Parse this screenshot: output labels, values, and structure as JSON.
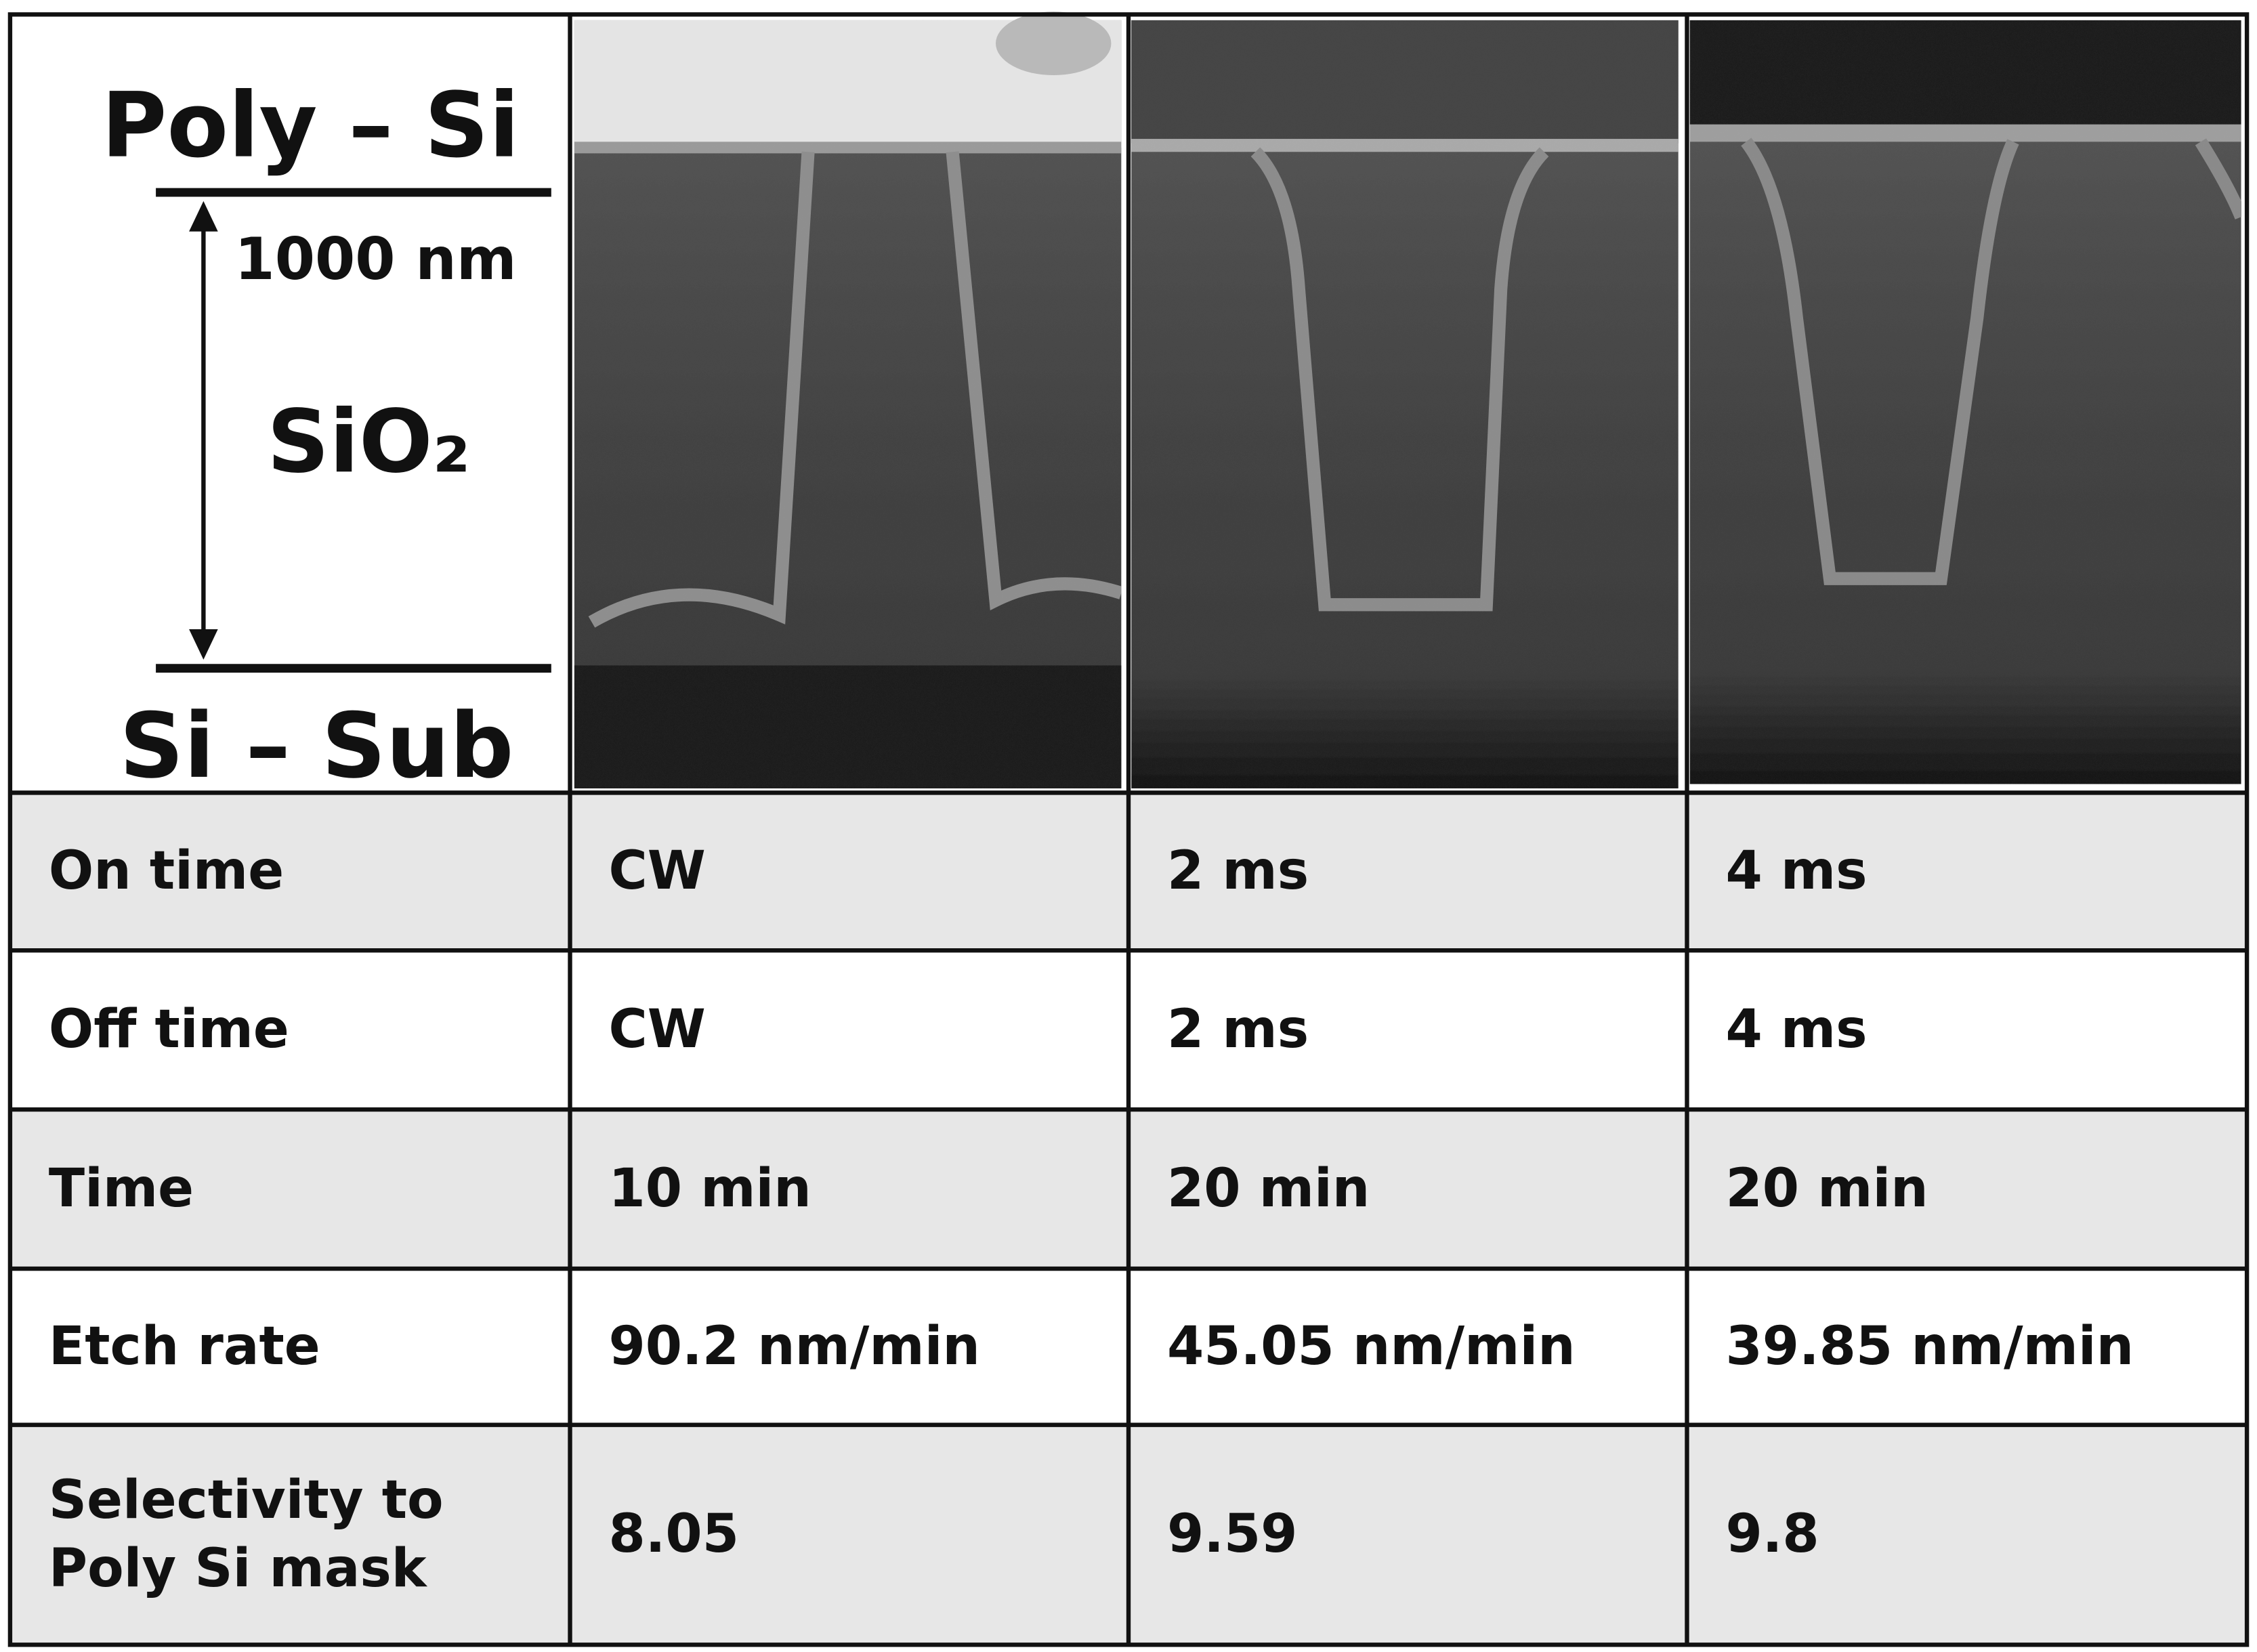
{
  "figure": {
    "labels": {
      "top": "Poly – Si",
      "scale": "1000 nm",
      "middle": "SiO₂",
      "bottom": "Si – Sub"
    }
  },
  "table": {
    "rows": [
      [
        "On time",
        "CW",
        "2 ms",
        "4 ms"
      ],
      [
        "Off time",
        "CW",
        "2 ms",
        "4 ms"
      ],
      [
        "Time",
        "10 min",
        "20 min",
        "20 min"
      ],
      [
        "Etch rate",
        "90.2 nm/min",
        "45.05 nm/min",
        "39.85 nm/min"
      ],
      [
        "Selectivity to Poly Si mask",
        "8.05",
        "9.59",
        "9.8"
      ]
    ]
  }
}
